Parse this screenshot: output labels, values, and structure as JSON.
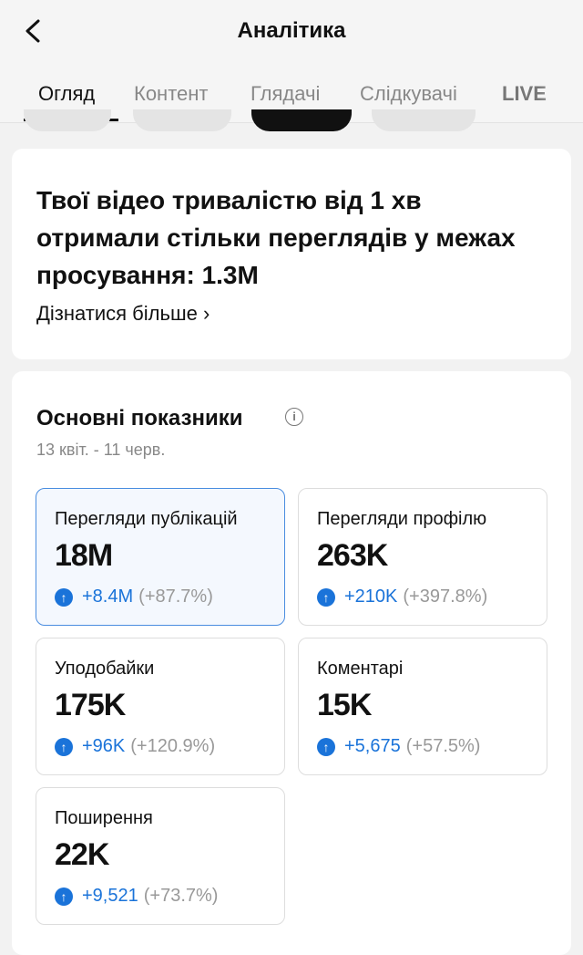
{
  "header": {
    "title": "Аналітика",
    "back_icon": "chevron-left-icon"
  },
  "tabs": [
    {
      "label": "Огляд",
      "active": true
    },
    {
      "label": "Контент"
    },
    {
      "label": "Глядачі"
    },
    {
      "label": "Слідкувачі"
    },
    {
      "label": "LIVE"
    }
  ],
  "promo": {
    "text": "Твої відео тривалістю від 1 хв отримали стільки переглядів у межах просування: 1.3M",
    "link": "Дізнатися більше"
  },
  "metrics_section": {
    "title": "Основні показники",
    "date_range": "13 квіт. - 11 черв.",
    "items": [
      {
        "label": "Перегляди публікацій",
        "value": "18M",
        "delta": "+8.4M",
        "percent": "(+87.7%)",
        "selected": true
      },
      {
        "label": "Перегляди профілю",
        "value": "263K",
        "delta": "+210K",
        "percent": "(+397.8%)"
      },
      {
        "label": "Уподобайки",
        "value": "175K",
        "delta": "+96K",
        "percent": "(+120.9%)"
      },
      {
        "label": "Коментарі",
        "value": "15K",
        "delta": "+5,675",
        "percent": "(+57.5%)"
      },
      {
        "label": "Поширення",
        "value": "22K",
        "delta": "+9,521",
        "percent": "(+73.7%)"
      }
    ]
  },
  "colors": {
    "accent": "#1a73d9",
    "selected_border": "#4a8de0"
  }
}
